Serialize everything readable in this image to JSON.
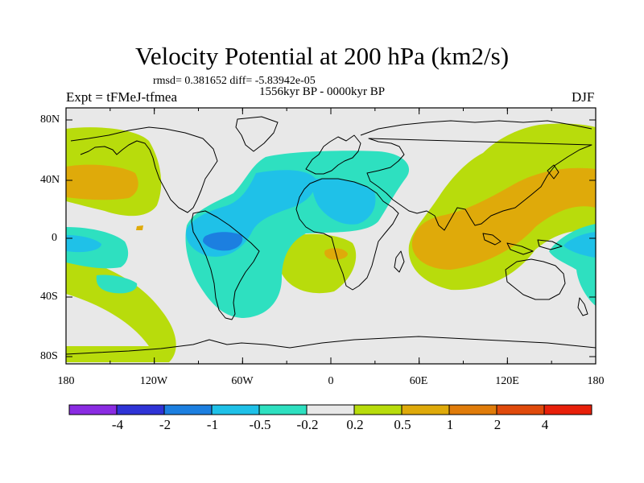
{
  "title": "Velocity Potential at 200 hPa (km2/s)",
  "stats_line": "rmsd= 0.381652 diff= -5.83942e-05",
  "experiment": "Expt = tFMeJ-tfmea",
  "period": "1556kyr BP - 0000kyr BP",
  "season": "DJF",
  "lat_ticks": [
    "80N",
    "40N",
    "0",
    "40S",
    "80S"
  ],
  "lon_ticks": [
    "180",
    "120W",
    "60W",
    "0",
    "60E",
    "120E",
    "180"
  ],
  "colorbar": {
    "labels": [
      "-4",
      "-2",
      "-1",
      "-0.5",
      "-0.2",
      "0.2",
      "0.5",
      "1",
      "2",
      "4"
    ],
    "colors": [
      "#8a2be2",
      "#2f33d6",
      "#1c7fe0",
      "#1fc1e8",
      "#2ee0c0",
      "#e8e8e8",
      "#b8dc0c",
      "#dfaa0a",
      "#e07c0a",
      "#e04a0c",
      "#e8200a"
    ]
  },
  "colors": {
    "neutral": "#e8e8e8",
    "level_p02": "#b8dc0c",
    "level_p05": "#dfaa0a",
    "level_p1": "#e07c0a",
    "level_m02": "#2ee0c0",
    "level_m05": "#1fc1e8",
    "level_m1": "#1c7fe0"
  }
}
